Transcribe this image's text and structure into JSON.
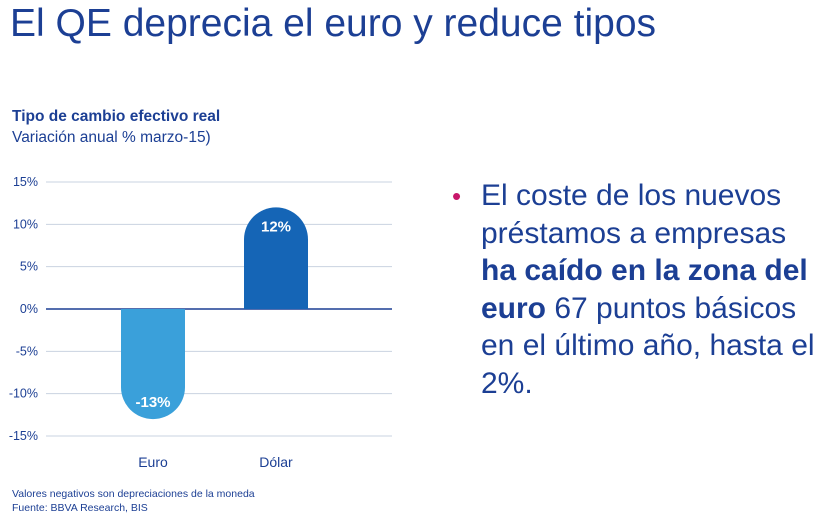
{
  "slide": {
    "title": "El QE deprecia el euro y reduce tipos"
  },
  "chart_data": {
    "type": "bar",
    "title": "Tipo de cambio efectivo real",
    "subtitle": "Variación anual % marzo-15)",
    "categories": [
      "Euro",
      "Dólar"
    ],
    "values": [
      -13,
      12
    ],
    "value_labels": [
      "-13%",
      "12%"
    ],
    "ylim": [
      -15,
      15
    ],
    "yticks": [
      15,
      10,
      5,
      0,
      -5,
      -10,
      -15
    ],
    "ytick_labels": [
      "15%",
      "10%",
      "5%",
      "0%",
      "-5%",
      "-10%",
      "-15%"
    ],
    "grid": true,
    "colors": [
      "#3aa0da",
      "#1565b6"
    ],
    "notes": [
      "Valores negativos son depreciaciones de la moneda",
      "Fuente: BBVA Research, BIS"
    ]
  },
  "bullet": {
    "part1": "El coste de los nuevos préstamos a empresas ",
    "bold": "ha caído en la zona del euro",
    "part2": " 67 puntos básicos en el último año, hasta el 2%."
  },
  "colors": {
    "title": "#1c3f94",
    "bullet_dot": "#c8176a",
    "grid": "#c9d3e0",
    "axis": "#1c3f94"
  }
}
